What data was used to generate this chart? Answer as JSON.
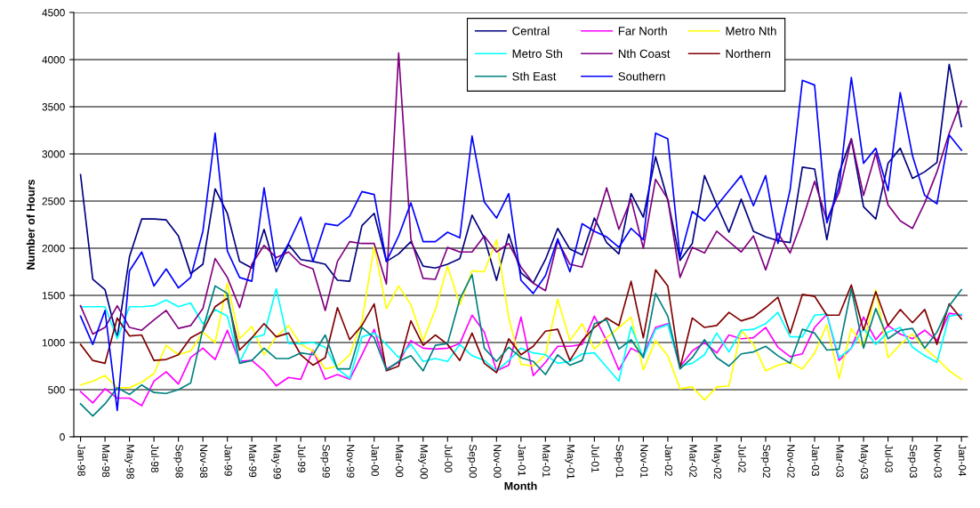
{
  "chart_data": {
    "type": "line",
    "xlabel": "Month",
    "ylabel": "Number of Hours",
    "categories": [
      "Jan-98",
      null,
      "Mar-98",
      null,
      "May-98",
      null,
      "Jul-98",
      null,
      "Sep-98",
      null,
      "Nov-98",
      null,
      "Jan-99",
      null,
      "Mar-99",
      null,
      "May-99",
      null,
      "Jul-99",
      null,
      "Sep-99",
      null,
      "Nov-99",
      null,
      "Jan-00",
      null,
      "Mar-00",
      null,
      "May-00",
      null,
      "Jul-00",
      null,
      "Sep-00",
      null,
      "Nov-00",
      null,
      "Jan-01",
      null,
      "Mar-01",
      null,
      "May-01",
      null,
      "Jul-01",
      null,
      "Sep-01",
      null,
      "Nov-01",
      null,
      "Jan-02",
      null,
      "Mar-02",
      null,
      "May-02",
      null,
      "Jul-02",
      null,
      "Sep-02",
      null,
      "Nov-02",
      null,
      "Jan-03",
      null,
      "Mar-03",
      null,
      "May-03",
      null,
      "Jul-03",
      null,
      "Sep-03",
      null,
      "Nov-03",
      null,
      "Jan-04"
    ],
    "series": [
      {
        "name": "Central",
        "color": "#000080",
        "values": [
          2780,
          1670,
          1560,
          1050,
          1910,
          2310,
          2310,
          2300,
          2130,
          1730,
          1830,
          2630,
          2370,
          1860,
          1790,
          2200,
          1750,
          2040,
          1880,
          1860,
          1830,
          1660,
          1650,
          2240,
          2370,
          1860,
          1940,
          2070,
          1810,
          1790,
          1830,
          1890,
          2350,
          2110,
          1660,
          2150,
          1740,
          1630,
          1880,
          2210,
          1990,
          1930,
          2320,
          2060,
          1940,
          2580,
          2330,
          2970,
          2510,
          1870,
          2050,
          2770,
          2460,
          2170,
          2520,
          2180,
          2120,
          2080,
          2060,
          2860,
          2840,
          2090,
          2800,
          3160,
          2440,
          2310,
          2900,
          3060,
          2740,
          2810,
          2910,
          3950,
          3290
        ]
      },
      {
        "name": "Far North",
        "color": "#ff00ff",
        "values": [
          480,
          360,
          510,
          410,
          410,
          330,
          590,
          690,
          560,
          840,
          940,
          820,
          1130,
          800,
          810,
          700,
          540,
          630,
          610,
          920,
          610,
          660,
          610,
          870,
          1140,
          720,
          790,
          1020,
          940,
          930,
          940,
          990,
          1290,
          1110,
          700,
          760,
          1270,
          650,
          790,
          960,
          960,
          980,
          1280,
          1020,
          710,
          940,
          870,
          1160,
          1200,
          740,
          910,
          1000,
          890,
          1080,
          1040,
          1050,
          1160,
          950,
          850,
          880,
          1160,
          1300,
          810,
          940,
          1270,
          1030,
          1180,
          1090,
          1040,
          1130,
          1020,
          1310,
          1290
        ]
      },
      {
        "name": "Metro Nth",
        "color": "#ffff00",
        "values": [
          550,
          590,
          650,
          520,
          520,
          580,
          670,
          970,
          870,
          910,
          1110,
          1000,
          1630,
          1040,
          1170,
          870,
          1060,
          1180,
          980,
          910,
          720,
          750,
          870,
          1220,
          2020,
          1360,
          1600,
          1400,
          1020,
          1350,
          1810,
          1400,
          1760,
          1750,
          2090,
          1260,
          770,
          750,
          870,
          1460,
          1020,
          1200,
          930,
          1050,
          1160,
          1270,
          710,
          1020,
          860,
          510,
          530,
          390,
          530,
          540,
          1130,
          980,
          700,
          760,
          790,
          720,
          890,
          1190,
          620,
          1150,
          950,
          1560,
          840,
          980,
          1090,
          940,
          830,
          700,
          610
        ]
      },
      {
        "name": "Metro Sth",
        "color": "#00ffff",
        "values": [
          1380,
          1380,
          1380,
          1040,
          1380,
          1380,
          1390,
          1450,
          1380,
          1420,
          1200,
          1350,
          1280,
          790,
          1050,
          1080,
          1570,
          990,
          990,
          1000,
          950,
          720,
          620,
          1060,
          1100,
          980,
          840,
          980,
          800,
          830,
          800,
          980,
          860,
          810,
          700,
          810,
          940,
          890,
          870,
          780,
          800,
          880,
          890,
          740,
          590,
          1170,
          840,
          1140,
          1190,
          750,
          780,
          870,
          1100,
          900,
          1130,
          1140,
          1200,
          1320,
          1060,
          1060,
          1290,
          1300,
          840,
          940,
          1150,
          980,
          1110,
          1160,
          950,
          860,
          790,
          1280,
          1300
        ]
      },
      {
        "name": "Nth Coast",
        "color": "#800080",
        "values": [
          1390,
          1090,
          1160,
          1390,
          1160,
          1130,
          1240,
          1340,
          1150,
          1180,
          1360,
          1890,
          1690,
          1370,
          1830,
          2030,
          1900,
          1960,
          1830,
          1780,
          1340,
          1860,
          2070,
          2050,
          2050,
          1620,
          4070,
          2100,
          1680,
          1670,
          2010,
          1960,
          1960,
          2130,
          1960,
          2050,
          1800,
          1630,
          1550,
          2080,
          1830,
          1800,
          2210,
          2640,
          2200,
          2520,
          2000,
          2730,
          2520,
          1690,
          2010,
          1950,
          2180,
          2070,
          1960,
          2130,
          1770,
          2160,
          1950,
          2300,
          2710,
          2300,
          2590,
          3160,
          2560,
          3010,
          2460,
          2290,
          2210,
          2480,
          2810,
          3220,
          3560
        ]
      },
      {
        "name": "Northern",
        "color": "#800000",
        "values": [
          980,
          810,
          780,
          1260,
          1070,
          1080,
          810,
          820,
          870,
          1050,
          1120,
          1380,
          1470,
          920,
          1050,
          1200,
          1060,
          1100,
          870,
          760,
          840,
          1370,
          1030,
          1180,
          1410,
          700,
          750,
          1230,
          970,
          1080,
          980,
          810,
          1100,
          780,
          680,
          1040,
          870,
          960,
          1120,
          1140,
          810,
          1020,
          1160,
          1260,
          1180,
          1650,
          1050,
          1770,
          1600,
          730,
          1260,
          1160,
          1180,
          1320,
          1230,
          1270,
          1370,
          1480,
          1100,
          1510,
          1490,
          1290,
          1290,
          1610,
          1130,
          1540,
          1180,
          1350,
          1210,
          1350,
          980,
          1410,
          1250
        ]
      },
      {
        "name": "Sth East",
        "color": "#008080",
        "values": [
          350,
          220,
          350,
          520,
          450,
          550,
          470,
          460,
          500,
          570,
          1140,
          1600,
          1520,
          780,
          810,
          940,
          830,
          830,
          890,
          870,
          1080,
          720,
          720,
          1160,
          1050,
          710,
          800,
          860,
          700,
          970,
          990,
          1460,
          1720,
          940,
          800,
          950,
          840,
          800,
          660,
          870,
          760,
          810,
          1200,
          1240,
          930,
          1030,
          840,
          1520,
          1280,
          720,
          840,
          1030,
          840,
          750,
          880,
          900,
          960,
          860,
          780,
          1140,
          1100,
          920,
          930,
          1570,
          940,
          1360,
          1040,
          1130,
          1150,
          940,
          1110,
          1390,
          1560
        ]
      },
      {
        "name": "Southern",
        "color": "#0000ff",
        "values": [
          1280,
          980,
          1340,
          280,
          1760,
          1960,
          1600,
          1780,
          1580,
          1690,
          2180,
          3220,
          1970,
          1690,
          1650,
          2640,
          1820,
          2050,
          2330,
          1860,
          2260,
          2240,
          2340,
          2600,
          2570,
          1860,
          2130,
          2480,
          2070,
          2070,
          2170,
          2110,
          3190,
          2490,
          2320,
          2580,
          1660,
          1520,
          1710,
          2100,
          1750,
          2260,
          2180,
          2120,
          2010,
          2210,
          2090,
          3220,
          3160,
          1900,
          2390,
          2290,
          2450,
          2610,
          2770,
          2450,
          2770,
          2050,
          2620,
          3780,
          3730,
          2270,
          2650,
          3810,
          2900,
          3060,
          2610,
          3650,
          2980,
          2560,
          2470,
          3200,
          3040
        ]
      }
    ],
    "ylim": [
      0,
      4500
    ],
    "yticks": [
      0,
      500,
      1000,
      1500,
      2000,
      2500,
      3000,
      3500,
      4000,
      4500
    ],
    "grid": "y",
    "legend": "top"
  }
}
